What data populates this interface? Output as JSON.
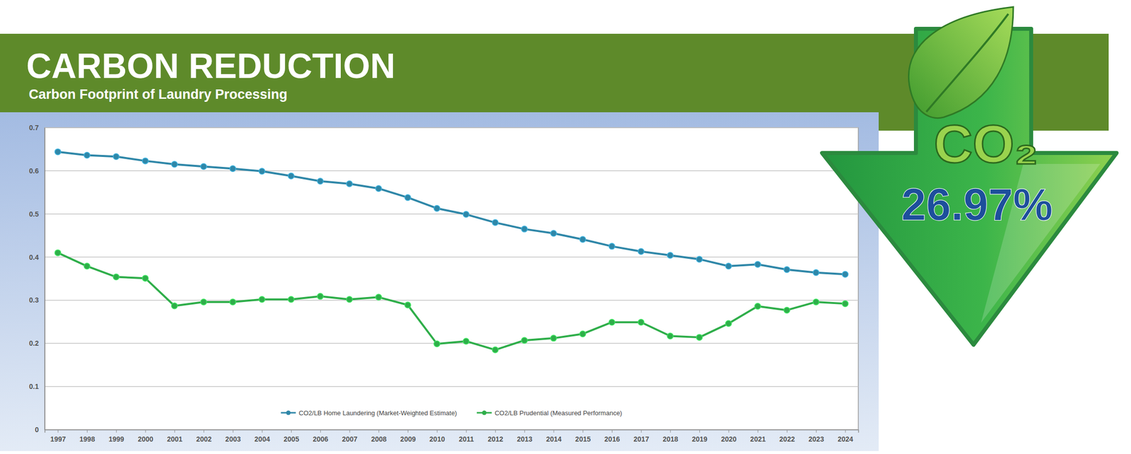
{
  "chart_data": {
    "type": "line",
    "title": "CARBON REDUCTION",
    "subtitle": "Carbon Footprint of Laundry Processing",
    "categories": [
      "1997",
      "1998",
      "1999",
      "2000",
      "2001",
      "2002",
      "2003",
      "2004",
      "2005",
      "2006",
      "2007",
      "2008",
      "2009",
      "2010",
      "2011",
      "2012",
      "2013",
      "2014",
      "2015",
      "2016",
      "2017",
      "2018",
      "2019",
      "2020",
      "2021",
      "2022",
      "2023",
      "2024"
    ],
    "series": [
      {
        "name": "CO2/LB Home Laundering (Market-Weighted Estimate)",
        "color": "#2f87a8",
        "marker": "circle",
        "line_style": "solid",
        "values": [
          0.644,
          0.636,
          0.633,
          0.623,
          0.615,
          0.61,
          0.605,
          0.599,
          0.588,
          0.576,
          0.57,
          0.559,
          0.538,
          0.513,
          0.499,
          0.48,
          0.465,
          0.455,
          0.441,
          0.425,
          0.413,
          0.404,
          0.395,
          0.379,
          0.383,
          0.371,
          0.364,
          0.36
        ]
      },
      {
        "name": "CO2/LB Prudential (Measured Performance)",
        "color": "#2fae4a",
        "marker": "circle",
        "line_style": "solid",
        "values": [
          0.41,
          0.379,
          0.354,
          0.351,
          0.287,
          0.296,
          0.296,
          0.302,
          0.302,
          0.309,
          0.302,
          0.307,
          0.289,
          0.199,
          0.205,
          0.185,
          0.207,
          0.212,
          0.222,
          0.249,
          0.249,
          0.217,
          0.214,
          0.246,
          0.286,
          0.277,
          0.296,
          0.292
        ]
      }
    ],
    "ylim": [
      0,
      0.7
    ],
    "yticks": [
      0,
      0.1,
      0.2,
      0.3,
      0.4,
      0.5,
      0.6,
      0.7
    ],
    "grid": true,
    "legend": "bottom",
    "annotations": [
      "CO₂",
      "26.97%"
    ]
  }
}
